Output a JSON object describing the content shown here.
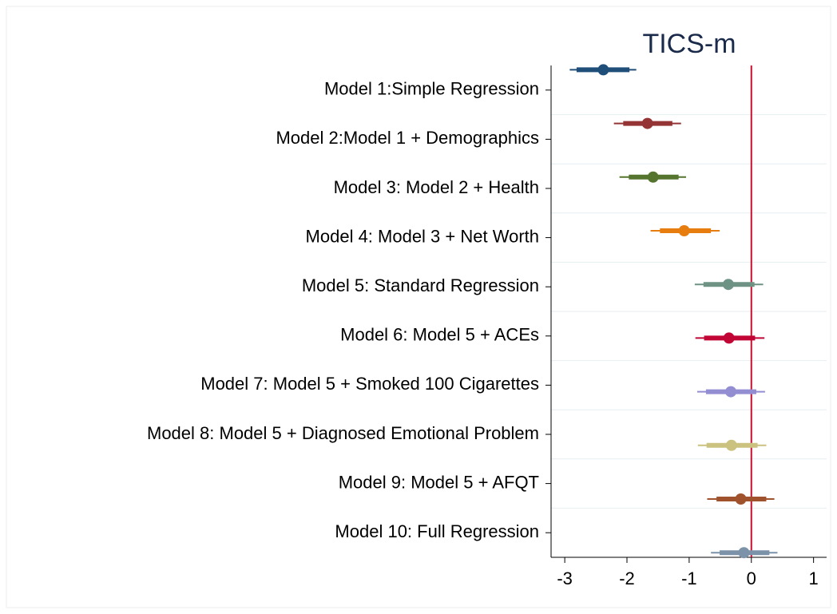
{
  "chart_data": {
    "type": "coefplot",
    "title": "TICS-m",
    "categories": [
      "Model 1:Simple Regression",
      "Model 2:Model 1 + Demographics",
      "Model 3: Model 2 + Health",
      "Model 4: Model 3 + Net Worth",
      "Model 5: Standard Regression",
      "Model 6: Model 5 + ACEs",
      "Model 7: Model 5 + Smoked 100 Cigarettes",
      "Model 8: Model 5 + Diagnosed Emotional Problem",
      "Model 9: Model 5 + AFQT",
      "Model 10: Full Regression"
    ],
    "values": [
      -2.38,
      -1.67,
      -1.58,
      -1.08,
      -0.37,
      -0.36,
      -0.33,
      -0.32,
      -0.17,
      -0.12
    ],
    "ci_low": [
      -2.92,
      -2.21,
      -2.12,
      -1.62,
      -0.91,
      -0.9,
      -0.87,
      -0.86,
      -0.71,
      -0.65
    ],
    "ci_high": [
      -1.85,
      -1.13,
      -1.05,
      -0.51,
      0.19,
      0.21,
      0.22,
      0.24,
      0.37,
      0.42
    ],
    "ci_inner_low": [
      -2.81,
      -2.06,
      -1.97,
      -1.47,
      -0.77,
      -0.76,
      -0.73,
      -0.72,
      -0.56,
      -0.51
    ],
    "ci_inner_high": [
      -1.96,
      -1.27,
      -1.17,
      -0.65,
      0.05,
      0.06,
      0.08,
      0.1,
      0.24,
      0.29
    ],
    "colors": [
      "#1f4e79",
      "#943434",
      "#55752f",
      "#e87d0f",
      "#6e9384",
      "#c10534",
      "#938dd2",
      "#cac27e",
      "#a0522d",
      "#7b92a8"
    ],
    "xlim": [
      -3.22,
      1.21
    ],
    "xticks": [
      -3,
      -2,
      -1,
      0,
      1
    ],
    "xline": 0,
    "xline_color": "#c8102e",
    "grid": true
  }
}
